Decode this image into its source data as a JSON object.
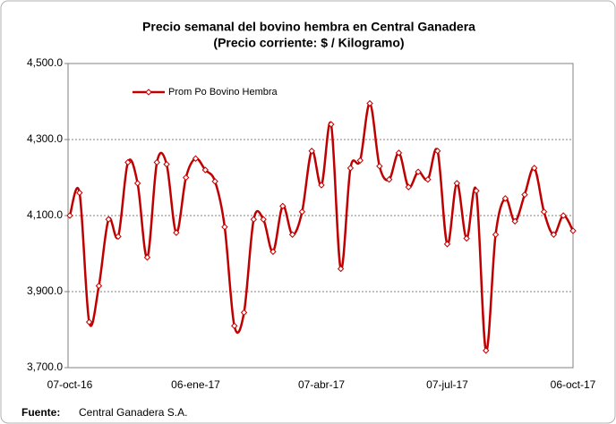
{
  "chart_data": {
    "type": "line",
    "title": "Precio semanal del bovino  hembra en Central Ganadera",
    "subtitle": "(Precio corriente: $ / Kilogramo)",
    "categories": [
      "07-oct-16",
      null,
      null,
      null,
      null,
      null,
      null,
      null,
      null,
      null,
      null,
      null,
      null,
      "06-ene-17",
      null,
      null,
      null,
      null,
      null,
      null,
      null,
      null,
      null,
      null,
      null,
      null,
      "07-abr-17",
      null,
      null,
      null,
      null,
      null,
      null,
      null,
      null,
      null,
      null,
      null,
      null,
      "07-jul-17",
      null,
      null,
      null,
      null,
      null,
      null,
      null,
      null,
      null,
      null,
      null,
      null,
      "06-oct-17"
    ],
    "series": [
      {
        "name": "Prom Po Bovino Hembra",
        "color": "#c00000",
        "values": [
          4100,
          4160,
          3820,
          3915,
          4090,
          4045,
          4240,
          4185,
          3990,
          4240,
          4235,
          4055,
          4200,
          4250,
          4220,
          4190,
          4070,
          3810,
          3845,
          4090,
          4090,
          4005,
          4125,
          4050,
          4110,
          4270,
          4180,
          4340,
          3960,
          4225,
          4245,
          4395,
          4230,
          4195,
          4265,
          4175,
          4215,
          4195,
          4270,
          4025,
          4185,
          4040,
          4165,
          3745,
          4050,
          4145,
          4085,
          4155,
          4225,
          4110,
          4050,
          4100,
          4060
        ]
      }
    ],
    "ylim": [
      3700,
      4500
    ],
    "yticks": [
      {
        "value": 3700,
        "label": "3,700.0"
      },
      {
        "value": 3900,
        "label": "3,900.0"
      },
      {
        "value": 4100,
        "label": "4,100.0"
      },
      {
        "value": 4300,
        "label": "4,300.0"
      },
      {
        "value": 4500,
        "label": "4,500.0"
      }
    ],
    "grid": true,
    "legend": "top-left",
    "source_label": "Fuente:",
    "source": "Central Ganadera S.A."
  }
}
